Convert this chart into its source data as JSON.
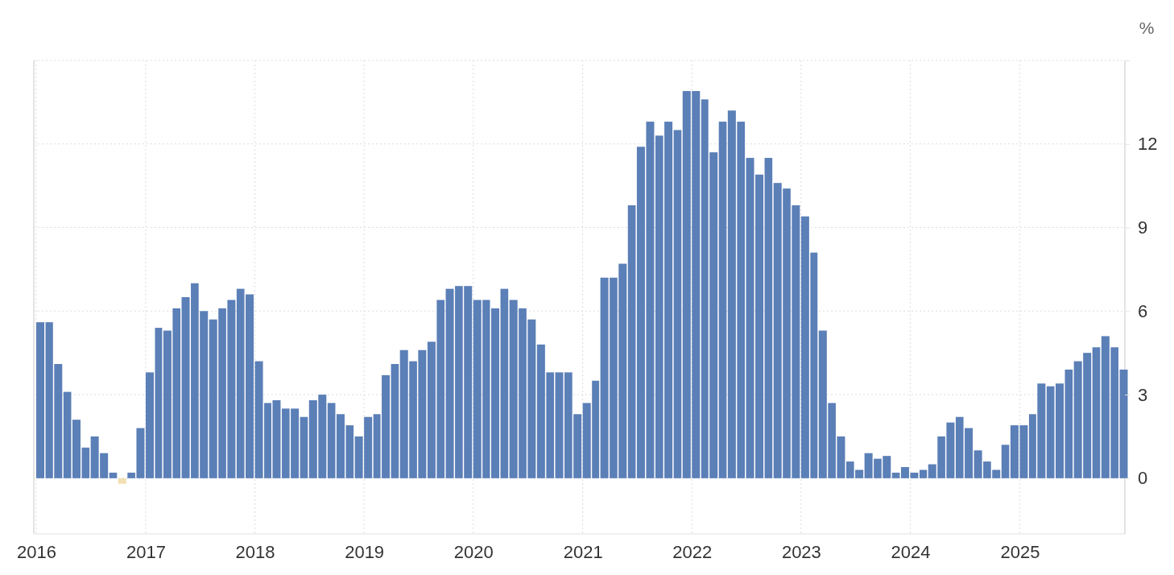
{
  "chart_data": {
    "type": "bar",
    "ylabel": "%",
    "x": [
      "2016-01",
      "2016-02",
      "2016-03",
      "2016-04",
      "2016-05",
      "2016-06",
      "2016-07",
      "2016-08",
      "2016-09",
      "2016-10",
      "2016-11",
      "2016-12",
      "2017-01",
      "2017-02",
      "2017-03",
      "2017-04",
      "2017-05",
      "2017-06",
      "2017-07",
      "2017-08",
      "2017-09",
      "2017-10",
      "2017-11",
      "2017-12",
      "2018-01",
      "2018-02",
      "2018-03",
      "2018-04",
      "2018-05",
      "2018-06",
      "2018-07",
      "2018-08",
      "2018-09",
      "2018-10",
      "2018-11",
      "2018-12",
      "2019-01",
      "2019-02",
      "2019-03",
      "2019-04",
      "2019-05",
      "2019-06",
      "2019-07",
      "2019-08",
      "2019-09",
      "2019-10",
      "2019-11",
      "2019-12",
      "2020-01",
      "2020-02",
      "2020-03",
      "2020-04",
      "2020-05",
      "2020-06",
      "2020-07",
      "2020-08",
      "2020-09",
      "2020-10",
      "2020-11",
      "2020-12",
      "2021-01",
      "2021-02",
      "2021-03",
      "2021-04",
      "2021-05",
      "2021-06",
      "2021-07",
      "2021-08",
      "2021-09",
      "2021-10",
      "2021-11",
      "2021-12",
      "2022-01",
      "2022-02",
      "2022-03",
      "2022-04",
      "2022-05",
      "2022-06",
      "2022-07",
      "2022-08",
      "2022-09",
      "2022-10",
      "2022-11",
      "2022-12",
      "2023-01",
      "2023-02",
      "2023-03",
      "2023-04",
      "2023-05",
      "2023-06",
      "2023-07",
      "2023-08",
      "2023-09",
      "2023-10",
      "2023-11",
      "2023-12",
      "2024-01",
      "2024-02",
      "2024-03",
      "2024-04",
      "2024-05",
      "2024-06",
      "2024-07",
      "2024-08",
      "2024-09",
      "2024-10",
      "2024-11",
      "2024-12",
      "2025-01",
      "2025-02",
      "2025-03",
      "2025-04",
      "2025-05",
      "2025-06",
      "2025-07",
      "2025-08",
      "2025-09",
      "2025-10",
      "2025-11",
      "2025-12"
    ],
    "values": [
      5.6,
      5.6,
      4.1,
      3.1,
      2.1,
      1.1,
      1.5,
      0.9,
      0.2,
      -0.2,
      0.2,
      1.8,
      3.8,
      5.4,
      5.3,
      6.1,
      6.5,
      7.0,
      6.0,
      5.7,
      6.1,
      6.4,
      6.8,
      6.6,
      4.2,
      2.7,
      2.8,
      2.5,
      2.5,
      2.2,
      2.8,
      3.0,
      2.7,
      2.3,
      1.9,
      1.5,
      2.2,
      2.3,
      3.7,
      4.1,
      4.6,
      4.2,
      4.6,
      4.9,
      6.4,
      6.8,
      6.9,
      6.9,
      6.4,
      6.4,
      6.1,
      6.8,
      6.4,
      6.1,
      5.7,
      4.8,
      3.8,
      3.8,
      3.8,
      2.3,
      2.7,
      3.5,
      7.2,
      7.2,
      7.7,
      9.8,
      11.9,
      12.8,
      12.3,
      12.8,
      12.5,
      13.9,
      13.9,
      13.6,
      11.7,
      12.8,
      13.2,
      12.8,
      11.5,
      10.9,
      11.5,
      10.6,
      10.4,
      9.8,
      9.4,
      8.1,
      5.3,
      2.7,
      1.5,
      0.6,
      0.3,
      0.9,
      0.7,
      0.8,
      0.2,
      0.4,
      0.2,
      0.3,
      0.5,
      1.5,
      2.0,
      2.2,
      1.8,
      1.0,
      0.6,
      0.3,
      1.2,
      1.9,
      1.9,
      2.3,
      3.4,
      3.3,
      3.4,
      3.9,
      4.2,
      4.5,
      4.7,
      5.1,
      4.7,
      3.9
    ],
    "colors": [
      "#5b7fb7",
      "#5b7fb7",
      "#5b7fb7",
      "#5b7fb7",
      "#5b7fb7",
      "#5b7fb7",
      "#5b7fb7",
      "#5b7fb7",
      "#5b7fb7",
      "#f2dfb3",
      "#5b7fb7",
      "#5b7fb7",
      "#5b7fb7",
      "#5b7fb7",
      "#5b7fb7",
      "#5b7fb7",
      "#5b7fb7",
      "#5b7fb7",
      "#5b7fb7",
      "#5b7fb7",
      "#5b7fb7",
      "#5b7fb7",
      "#5b7fb7",
      "#5b7fb7",
      "#5b7fb7",
      "#5b7fb7",
      "#5b7fb7",
      "#5b7fb7",
      "#5b7fb7",
      "#5b7fb7",
      "#5b7fb7",
      "#5b7fb7",
      "#5b7fb7",
      "#5b7fb7",
      "#5b7fb7",
      "#5b7fb7",
      "#5b7fb7",
      "#5b7fb7",
      "#5b7fb7",
      "#5b7fb7",
      "#5b7fb7",
      "#5b7fb7",
      "#5b7fb7",
      "#5b7fb7",
      "#5b7fb7",
      "#5b7fb7",
      "#5b7fb7",
      "#5b7fb7",
      "#5b7fb7",
      "#5b7fb7",
      "#5b7fb7",
      "#5b7fb7",
      "#5b7fb7",
      "#5b7fb7",
      "#5b7fb7",
      "#5b7fb7",
      "#5b7fb7",
      "#5b7fb7",
      "#5b7fb7",
      "#5b7fb7",
      "#5b7fb7",
      "#5b7fb7",
      "#5b7fb7",
      "#5b7fb7",
      "#5b7fb7",
      "#5b7fb7",
      "#5b7fb7",
      "#5b7fb7",
      "#5b7fb7",
      "#5b7fb7",
      "#5b7fb7",
      "#5b7fb7",
      "#5b7fb7",
      "#5b7fb7",
      "#5b7fb7",
      "#5b7fb7",
      "#5b7fb7",
      "#5b7fb7",
      "#5b7fb7",
      "#5b7fb7",
      "#5b7fb7",
      "#5b7fb7",
      "#5b7fb7",
      "#5b7fb7",
      "#5b7fb7",
      "#5b7fb7",
      "#5b7fb7",
      "#5b7fb7",
      "#5b7fb7",
      "#5b7fb7",
      "#5b7fb7",
      "#5b7fb7",
      "#5b7fb7",
      "#5b7fb7",
      "#5b7fb7",
      "#5b7fb7",
      "#5b7fb7",
      "#5b7fb7",
      "#5b7fb7",
      "#5b7fb7",
      "#5b7fb7",
      "#5b7fb7",
      "#5b7fb7",
      "#5b7fb7",
      "#5b7fb7",
      "#5b7fb7",
      "#5b7fb7",
      "#5b7fb7",
      "#5b7fb7",
      "#5b7fb7",
      "#5b7fb7",
      "#5b7fb7",
      "#5b7fb7",
      "#5b7fb7",
      "#5b7fb7",
      "#5b7fb7",
      "#5b7fb7",
      "#5b7fb7",
      "#5b7fb7",
      "#5b7fb7"
    ],
    "xlim": [
      "2016-01",
      "2026-01"
    ],
    "xticks": [
      {
        "value": "2016",
        "label": "2016"
      },
      {
        "value": "2017",
        "label": "2017"
      },
      {
        "value": "2018",
        "label": "2018"
      },
      {
        "value": "2019",
        "label": "2019"
      },
      {
        "value": "2020",
        "label": "2020"
      },
      {
        "value": "2021",
        "label": "2021"
      },
      {
        "value": "2022",
        "label": "2022"
      },
      {
        "value": "2023",
        "label": "2023"
      },
      {
        "value": "2024",
        "label": "2024"
      },
      {
        "value": "2025",
        "label": "2025"
      }
    ],
    "ylim": [
      -2,
      15
    ],
    "yticks": [
      0,
      3,
      6,
      9,
      12,
      {
        "value": 15,
        "label": null
      }
    ],
    "grid": true
  }
}
